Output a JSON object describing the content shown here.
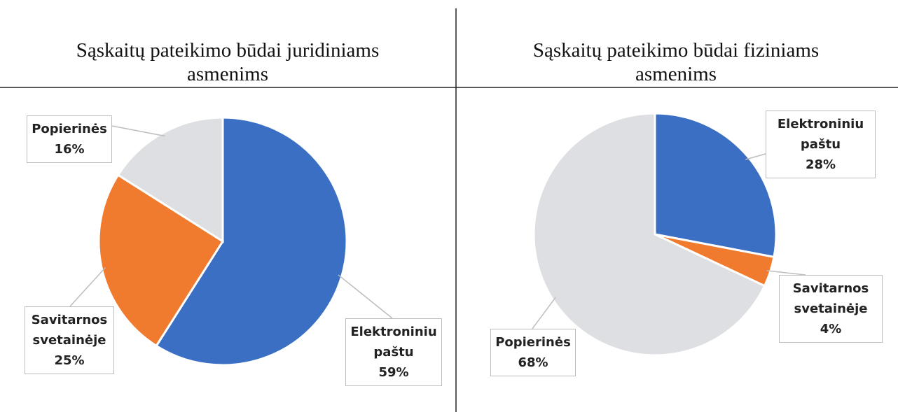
{
  "chart_data": [
    {
      "type": "pie",
      "title": "Sąskaitų pateikimo būdai juridiniams asmenims",
      "categories": [
        "Elektroniniu paštu",
        "Savitarnos svetainėje",
        "Popierinės"
      ],
      "values": [
        59,
        25,
        16
      ],
      "value_labels": [
        "59%",
        "25%",
        "16%"
      ],
      "colors": [
        "#3b6fc3",
        "#f07b2e",
        "#dedfe2"
      ]
    },
    {
      "type": "pie",
      "title": "Sąskaitų pateikimo būdai fiziniams asmenims",
      "categories": [
        "Elektroniniu paštu",
        "Savitarnos svetainėje",
        "Popierinės"
      ],
      "values": [
        28,
        4,
        68
      ],
      "value_labels": [
        "28%",
        "4%",
        "68%"
      ],
      "colors": [
        "#3b6fc3",
        "#f07b2e",
        "#dedfe2"
      ]
    }
  ]
}
